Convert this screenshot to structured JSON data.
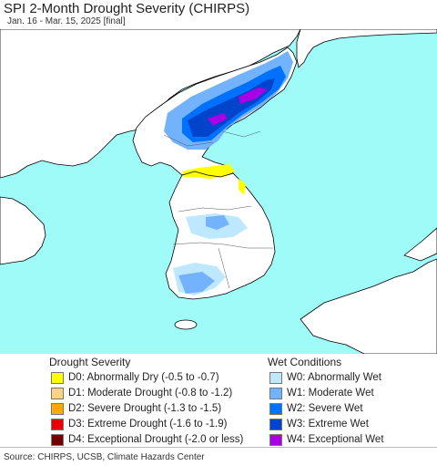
{
  "header": {
    "title": "SPI 2-Month Drought Severity (CHIRPS)",
    "subtitle": "Jan. 16 - Mar. 15, 2025 [final]"
  },
  "legend": {
    "drought": {
      "heading": "Drought Severity",
      "items": [
        {
          "label": "D0: Abnormally Dry (-0.5 to -0.7)",
          "color": "#ffff00"
        },
        {
          "label": "D1: Moderate Drought (-0.8 to -1.2)",
          "color": "#fcd37f"
        },
        {
          "label": "D2: Severe Drought (-1.3 to -1.5)",
          "color": "#ffaa00"
        },
        {
          "label": "D3: Extreme Drought (-1.6 to -1.9)",
          "color": "#e60000"
        },
        {
          "label": "D4: Exceptional Drought (-2.0 or less)",
          "color": "#730000"
        }
      ]
    },
    "wet": {
      "heading": "Wet Conditions",
      "items": [
        {
          "label": "W0: Abnormally Wet",
          "color": "#bee8ff"
        },
        {
          "label": "W1: Moderate Wet",
          "color": "#73b2ff"
        },
        {
          "label": "W2: Severe Wet",
          "color": "#0070ff"
        },
        {
          "label": "W3: Extreme Wet",
          "color": "#0044cc"
        },
        {
          "label": "W4: Exceptional Wet",
          "color": "#a900e6"
        }
      ]
    }
  },
  "map": {
    "ocean_color": "#9ffbf7",
    "land_color": "#ffffff"
  },
  "footer": {
    "source": "Source: CHIRPS, UCSB, Climate Hazards Center"
  }
}
